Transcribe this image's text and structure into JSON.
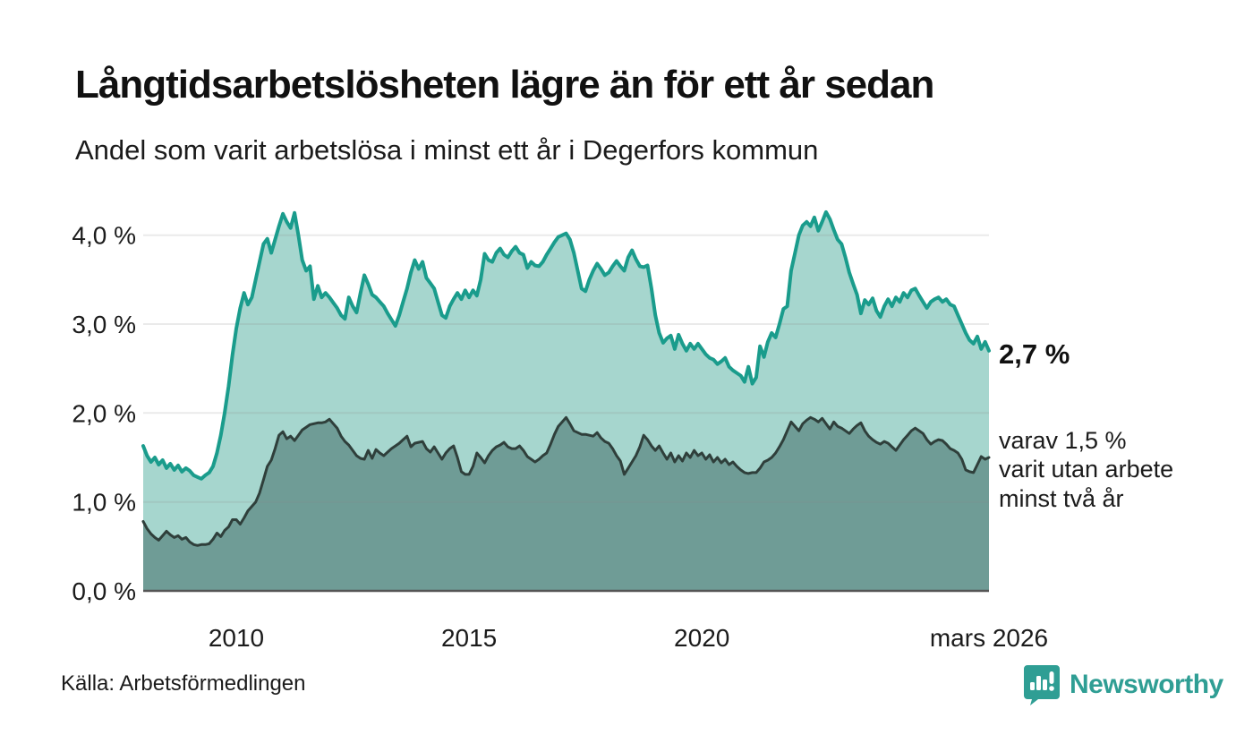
{
  "header": {
    "title": "Långtidsarbetslösheten lägre än för ett år sedan",
    "subtitle": "Andel som varit arbetslösa i minst ett år i Degerfors kommun"
  },
  "colors": {
    "line_1yr": "#1a9c8c",
    "fill_1yr": "#a6d6ce",
    "line_2yr": "#2f3f3b",
    "fill_2yr": "#6f9c96",
    "grid": "#8a8a8a",
    "axis": "#555555",
    "brand_teal": "#2f9e94"
  },
  "chart_data": {
    "type": "area",
    "title": "Långtidsarbetslösheten lägre än för ett år sedan",
    "subtitle": "Andel som varit arbetslösa i minst ett år i Degerfors kommun",
    "x_start_year": 2008.0,
    "x_end_year": 2026.1667,
    "x_unit": "month",
    "ylim": [
      0,
      4.3
    ],
    "grid": "horizontal",
    "y_ticks": [
      {
        "value": 0,
        "label": "0,0 %"
      },
      {
        "value": 1,
        "label": "1,0 %"
      },
      {
        "value": 2,
        "label": "2,0 %"
      },
      {
        "value": 3,
        "label": "3,0 %"
      },
      {
        "value": 4,
        "label": "4,0 %"
      }
    ],
    "x_ticks": [
      {
        "year": 2010.0,
        "label": "2010"
      },
      {
        "year": 2015.0,
        "label": "2015"
      },
      {
        "year": 2020.0,
        "label": "2020"
      },
      {
        "year": 2026.1667,
        "label": "mars 2026"
      }
    ],
    "series": [
      {
        "name": "Andel arbetslösa minst ett år",
        "line_color": "#1a9c8c",
        "fill_color": "#a6d6ce",
        "line_width": 4,
        "latest_value": "2,7 %",
        "values": [
          1.63,
          1.52,
          1.45,
          1.5,
          1.42,
          1.47,
          1.38,
          1.43,
          1.36,
          1.41,
          1.34,
          1.38,
          1.35,
          1.3,
          1.28,
          1.26,
          1.3,
          1.33,
          1.4,
          1.55,
          1.75,
          2.0,
          2.3,
          2.65,
          2.95,
          3.18,
          3.35,
          3.22,
          3.3,
          3.5,
          3.7,
          3.9,
          3.96,
          3.8,
          3.95,
          4.1,
          4.24,
          4.15,
          4.08,
          4.25,
          4.0,
          3.72,
          3.6,
          3.65,
          3.28,
          3.43,
          3.3,
          3.35,
          3.3,
          3.24,
          3.18,
          3.1,
          3.06,
          3.3,
          3.2,
          3.13,
          3.35,
          3.55,
          3.45,
          3.33,
          3.3,
          3.25,
          3.2,
          3.12,
          3.05,
          2.98,
          3.1,
          3.25,
          3.4,
          3.58,
          3.72,
          3.62,
          3.7,
          3.52,
          3.46,
          3.4,
          3.25,
          3.1,
          3.07,
          3.2,
          3.28,
          3.35,
          3.28,
          3.38,
          3.3,
          3.38,
          3.32,
          3.5,
          3.79,
          3.72,
          3.7,
          3.8,
          3.85,
          3.78,
          3.75,
          3.82,
          3.87,
          3.8,
          3.78,
          3.63,
          3.7,
          3.66,
          3.65,
          3.7,
          3.78,
          3.85,
          3.92,
          3.98,
          4.0,
          4.02,
          3.95,
          3.8,
          3.6,
          3.4,
          3.37,
          3.5,
          3.6,
          3.68,
          3.62,
          3.55,
          3.58,
          3.65,
          3.71,
          3.65,
          3.6,
          3.75,
          3.83,
          3.73,
          3.65,
          3.64,
          3.66,
          3.4,
          3.1,
          2.9,
          2.79,
          2.84,
          2.87,
          2.72,
          2.88,
          2.78,
          2.7,
          2.78,
          2.72,
          2.78,
          2.72,
          2.66,
          2.62,
          2.6,
          2.55,
          2.58,
          2.62,
          2.52,
          2.48,
          2.45,
          2.42,
          2.35,
          2.52,
          2.33,
          2.4,
          2.75,
          2.63,
          2.8,
          2.9,
          2.85,
          3.0,
          3.17,
          3.2,
          3.6,
          3.8,
          4.0,
          4.11,
          4.15,
          4.1,
          4.2,
          4.05,
          4.15,
          4.26,
          4.18,
          4.06,
          3.95,
          3.9,
          3.75,
          3.58,
          3.45,
          3.33,
          3.12,
          3.27,
          3.22,
          3.29,
          3.15,
          3.08,
          3.2,
          3.28,
          3.2,
          3.3,
          3.25,
          3.35,
          3.3,
          3.38,
          3.4,
          3.32,
          3.25,
          3.18,
          3.25,
          3.28,
          3.3,
          3.25,
          3.28,
          3.22,
          3.2,
          3.1,
          3.0,
          2.9,
          2.82,
          2.78,
          2.86,
          2.72,
          2.8,
          2.7
        ]
      },
      {
        "name": "varav utan arbete minst två år",
        "line_color": "#2f3f3b",
        "fill_color": "#6f9c96",
        "line_width": 3,
        "latest_value": "1,5 %",
        "values": [
          0.78,
          0.7,
          0.64,
          0.6,
          0.57,
          0.62,
          0.67,
          0.63,
          0.6,
          0.62,
          0.58,
          0.6,
          0.55,
          0.52,
          0.51,
          0.52,
          0.52,
          0.53,
          0.58,
          0.65,
          0.61,
          0.68,
          0.72,
          0.8,
          0.8,
          0.75,
          0.82,
          0.9,
          0.95,
          1.0,
          1.1,
          1.25,
          1.4,
          1.47,
          1.6,
          1.75,
          1.79,
          1.71,
          1.74,
          1.69,
          1.75,
          1.81,
          1.84,
          1.87,
          1.88,
          1.89,
          1.89,
          1.9,
          1.93,
          1.88,
          1.83,
          1.74,
          1.68,
          1.64,
          1.58,
          1.52,
          1.49,
          1.48,
          1.58,
          1.49,
          1.59,
          1.55,
          1.52,
          1.56,
          1.6,
          1.63,
          1.66,
          1.7,
          1.74,
          1.62,
          1.66,
          1.67,
          1.68,
          1.6,
          1.56,
          1.62,
          1.55,
          1.48,
          1.55,
          1.6,
          1.63,
          1.5,
          1.34,
          1.31,
          1.31,
          1.4,
          1.55,
          1.5,
          1.44,
          1.52,
          1.58,
          1.62,
          1.64,
          1.67,
          1.62,
          1.6,
          1.6,
          1.63,
          1.58,
          1.51,
          1.48,
          1.45,
          1.48,
          1.52,
          1.55,
          1.65,
          1.76,
          1.85,
          1.9,
          1.95,
          1.88,
          1.8,
          1.78,
          1.76,
          1.76,
          1.75,
          1.74,
          1.78,
          1.72,
          1.68,
          1.66,
          1.6,
          1.52,
          1.46,
          1.31,
          1.38,
          1.45,
          1.52,
          1.62,
          1.75,
          1.7,
          1.63,
          1.58,
          1.63,
          1.55,
          1.48,
          1.55,
          1.45,
          1.52,
          1.46,
          1.55,
          1.5,
          1.58,
          1.52,
          1.55,
          1.48,
          1.53,
          1.45,
          1.5,
          1.44,
          1.48,
          1.42,
          1.45,
          1.4,
          1.36,
          1.33,
          1.32,
          1.33,
          1.33,
          1.38,
          1.45,
          1.47,
          1.5,
          1.55,
          1.62,
          1.7,
          1.8,
          1.9,
          1.85,
          1.8,
          1.88,
          1.92,
          1.95,
          1.93,
          1.9,
          1.94,
          1.88,
          1.82,
          1.9,
          1.85,
          1.83,
          1.8,
          1.77,
          1.82,
          1.86,
          1.89,
          1.8,
          1.74,
          1.7,
          1.67,
          1.65,
          1.68,
          1.66,
          1.62,
          1.58,
          1.64,
          1.7,
          1.75,
          1.8,
          1.83,
          1.8,
          1.77,
          1.7,
          1.65,
          1.68,
          1.7,
          1.69,
          1.65,
          1.6,
          1.58,
          1.55,
          1.48,
          1.36,
          1.34,
          1.33,
          1.42,
          1.51,
          1.48,
          1.5
        ]
      }
    ],
    "annotations": {
      "latest_total": "2,7 %",
      "sub_line1": "varav 1,5 %",
      "sub_line2": "varit utan arbete",
      "sub_line3": "minst två år"
    },
    "legend_position": "none"
  },
  "footer": {
    "source": "Källa: Arbetsförmedlingen",
    "brand": "Newsworthy"
  }
}
